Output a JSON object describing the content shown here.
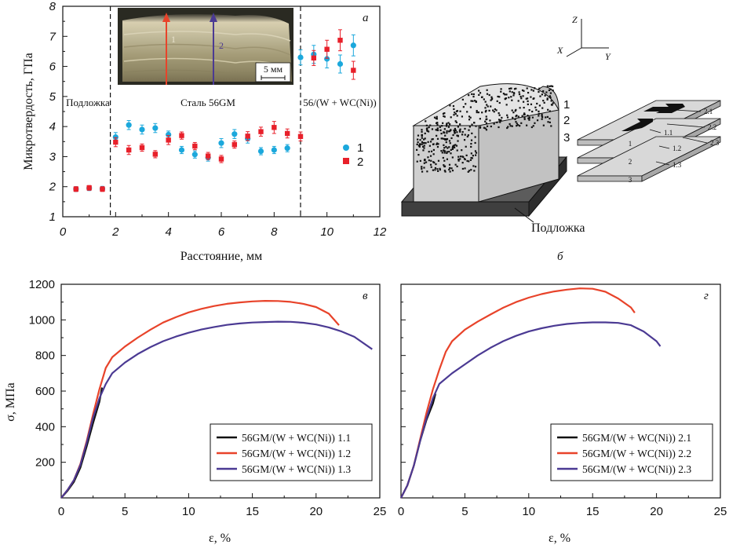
{
  "panels": {
    "a": {
      "letter": "а",
      "ylabel": "Микротвердость, ГПа",
      "xlabel": "Расстояние, мм",
      "regions": [
        "Подложка",
        "Сталь 56GM",
        "56/(W + WC(Ni))"
      ],
      "scale_bar": "5 мм",
      "arrow_labels": [
        "1",
        "2"
      ]
    },
    "b": {
      "letter": "б",
      "substrate_label": "Подложка",
      "layer_labels": [
        "1",
        "2",
        "3"
      ],
      "sample_labels": [
        "2.1",
        "2.2",
        "2.3",
        "1.1",
        "1.2",
        "1.3"
      ],
      "stack_numbers": [
        "1",
        "2",
        "3"
      ],
      "axes": [
        "Z",
        "X",
        "Y"
      ]
    },
    "v": {
      "letter": "в",
      "ylabel": "σ, МПа",
      "xlabel": "ε, %"
    },
    "g": {
      "letter": "г",
      "xlabel": "ε, %"
    }
  },
  "colors": {
    "cyan": "#1ba8dc",
    "red": "#e8202a",
    "black": "#111111",
    "orange": "#e8432a",
    "purple": "#4b3a93"
  },
  "chart_data": [
    {
      "type": "scatter",
      "panel": "а",
      "xlim": [
        0,
        12
      ],
      "ylim": [
        1,
        8
      ],
      "xticks": [
        0,
        2,
        4,
        6,
        8,
        10,
        12
      ],
      "yticks": [
        1,
        2,
        3,
        4,
        5,
        6,
        7,
        8
      ],
      "boundaries": [
        1.8,
        9.0
      ],
      "legend": [
        "1",
        "2"
      ],
      "series": [
        {
          "name": "1",
          "color": "#1ba8dc",
          "points": [
            {
              "x": 0.5,
              "y": 1.92,
              "err": 0.08
            },
            {
              "x": 1.0,
              "y": 1.95,
              "err": 0.08
            },
            {
              "x": 1.5,
              "y": 1.93,
              "err": 0.08
            },
            {
              "x": 2.0,
              "y": 3.65,
              "err": 0.15
            },
            {
              "x": 2.5,
              "y": 4.05,
              "err": 0.15
            },
            {
              "x": 3.0,
              "y": 3.9,
              "err": 0.15
            },
            {
              "x": 3.5,
              "y": 3.95,
              "err": 0.15
            },
            {
              "x": 4.0,
              "y": 3.73,
              "err": 0.12
            },
            {
              "x": 4.5,
              "y": 3.22,
              "err": 0.12
            },
            {
              "x": 5.0,
              "y": 3.07,
              "err": 0.12
            },
            {
              "x": 5.5,
              "y": 2.97,
              "err": 0.12
            },
            {
              "x": 6.0,
              "y": 3.45,
              "err": 0.15
            },
            {
              "x": 6.5,
              "y": 3.75,
              "err": 0.15
            },
            {
              "x": 7.0,
              "y": 3.6,
              "err": 0.15
            },
            {
              "x": 7.5,
              "y": 3.18,
              "err": 0.12
            },
            {
              "x": 8.0,
              "y": 3.22,
              "err": 0.12
            },
            {
              "x": 8.5,
              "y": 3.28,
              "err": 0.12
            },
            {
              "x": 9.0,
              "y": 6.3,
              "err": 0.25
            },
            {
              "x": 9.5,
              "y": 6.4,
              "err": 0.3
            },
            {
              "x": 10.0,
              "y": 6.25,
              "err": 0.3
            },
            {
              "x": 10.5,
              "y": 6.08,
              "err": 0.3
            },
            {
              "x": 11.0,
              "y": 6.7,
              "err": 0.35
            }
          ]
        },
        {
          "name": "2",
          "color": "#e8202a",
          "points": [
            {
              "x": 0.5,
              "y": 1.92,
              "err": 0.08
            },
            {
              "x": 1.0,
              "y": 1.96,
              "err": 0.08
            },
            {
              "x": 1.5,
              "y": 1.92,
              "err": 0.08
            },
            {
              "x": 2.0,
              "y": 3.48,
              "err": 0.15
            },
            {
              "x": 2.5,
              "y": 3.22,
              "err": 0.15
            },
            {
              "x": 3.0,
              "y": 3.3,
              "err": 0.12
            },
            {
              "x": 3.5,
              "y": 3.08,
              "err": 0.12
            },
            {
              "x": 4.0,
              "y": 3.55,
              "err": 0.15
            },
            {
              "x": 4.5,
              "y": 3.7,
              "err": 0.12
            },
            {
              "x": 5.0,
              "y": 3.35,
              "err": 0.12
            },
            {
              "x": 5.5,
              "y": 3.02,
              "err": 0.12
            },
            {
              "x": 6.0,
              "y": 2.92,
              "err": 0.12
            },
            {
              "x": 6.5,
              "y": 3.4,
              "err": 0.12
            },
            {
              "x": 7.0,
              "y": 3.68,
              "err": 0.15
            },
            {
              "x": 7.5,
              "y": 3.83,
              "err": 0.15
            },
            {
              "x": 8.0,
              "y": 3.97,
              "err": 0.2
            },
            {
              "x": 8.5,
              "y": 3.77,
              "err": 0.15
            },
            {
              "x": 9.0,
              "y": 3.67,
              "err": 0.15
            },
            {
              "x": 9.5,
              "y": 6.28,
              "err": 0.25
            },
            {
              "x": 10.0,
              "y": 6.57,
              "err": 0.3
            },
            {
              "x": 10.5,
              "y": 6.87,
              "err": 0.35
            },
            {
              "x": 11.0,
              "y": 5.87,
              "err": 0.3
            }
          ]
        }
      ]
    },
    {
      "type": "line",
      "panel": "в",
      "xlim": [
        0,
        25
      ],
      "ylim": [
        0,
        1200
      ],
      "xticks": [
        0,
        5,
        10,
        15,
        20,
        25
      ],
      "yticks": [
        200,
        400,
        600,
        800,
        1000,
        1200
      ],
      "legend_position": "bottom-right",
      "series": [
        {
          "name": "56GM/(W + WC(Ni)) 1.1",
          "color": "#111111",
          "points": [
            [
              0,
              0
            ],
            [
              0.5,
              40
            ],
            [
              1,
              90
            ],
            [
              1.5,
              170
            ],
            [
              2,
              290
            ],
            [
              2.5,
              420
            ],
            [
              3,
              540
            ],
            [
              3.2,
              620
            ]
          ]
        },
        {
          "name": "56GM/(W + WC(Ni)) 1.2",
          "color": "#e8432a",
          "points": [
            [
              0,
              0
            ],
            [
              0.5,
              45
            ],
            [
              1,
              100
            ],
            [
              1.5,
              190
            ],
            [
              2,
              320
            ],
            [
              2.5,
              470
            ],
            [
              3,
              610
            ],
            [
              3.5,
              730
            ],
            [
              4,
              790
            ],
            [
              5,
              850
            ],
            [
              6,
              900
            ],
            [
              7,
              945
            ],
            [
              8,
              985
            ],
            [
              9,
              1015
            ],
            [
              10,
              1042
            ],
            [
              11,
              1062
            ],
            [
              12,
              1078
            ],
            [
              13,
              1090
            ],
            [
              14,
              1098
            ],
            [
              15,
              1104
            ],
            [
              16,
              1107
            ],
            [
              17,
              1106
            ],
            [
              18,
              1101
            ],
            [
              19,
              1090
            ],
            [
              20,
              1072
            ],
            [
              21,
              1035
            ],
            [
              21.8,
              970
            ]
          ]
        },
        {
          "name": "56GM/(W + WC(Ni)) 1.3",
          "color": "#4b3a93",
          "points": [
            [
              0,
              0
            ],
            [
              0.5,
              45
            ],
            [
              1,
              100
            ],
            [
              1.5,
              185
            ],
            [
              2,
              310
            ],
            [
              2.5,
              450
            ],
            [
              3,
              560
            ],
            [
              3.5,
              640
            ],
            [
              4,
              700
            ],
            [
              5,
              760
            ],
            [
              6,
              808
            ],
            [
              7,
              847
            ],
            [
              8,
              880
            ],
            [
              9,
              906
            ],
            [
              10,
              928
            ],
            [
              11,
              946
            ],
            [
              12,
              960
            ],
            [
              13,
              972
            ],
            [
              14,
              980
            ],
            [
              15,
              985
            ],
            [
              16,
              988
            ],
            [
              17,
              990
            ],
            [
              18,
              989
            ],
            [
              19,
              984
            ],
            [
              20,
              974
            ],
            [
              21,
              958
            ],
            [
              22,
              935
            ],
            [
              23,
              905
            ],
            [
              24.4,
              835
            ]
          ]
        }
      ]
    },
    {
      "type": "line",
      "panel": "г",
      "xlim": [
        0,
        25
      ],
      "ylim": [
        0,
        1200
      ],
      "xticks": [
        0,
        5,
        10,
        15,
        20,
        25
      ],
      "yticks": [
        200,
        400,
        600,
        800,
        1000,
        1200
      ],
      "legend_position": "bottom-right",
      "series": [
        {
          "name": "56GM/(W + WC(Ni)) 2.1",
          "color": "#111111",
          "points": [
            [
              0,
              0
            ],
            [
              0.5,
              70
            ],
            [
              1,
              180
            ],
            [
              1.5,
              320
            ],
            [
              2,
              440
            ],
            [
              2.5,
              530
            ],
            [
              2.7,
              585
            ]
          ]
        },
        {
          "name": "56GM/(W + WC(Ni)) 2.2",
          "color": "#e8432a",
          "points": [
            [
              0,
              0
            ],
            [
              0.5,
              70
            ],
            [
              1,
              180
            ],
            [
              1.5,
              330
            ],
            [
              2,
              480
            ],
            [
              2.5,
              610
            ],
            [
              3,
              720
            ],
            [
              3.5,
              820
            ],
            [
              4,
              880
            ],
            [
              5,
              945
            ],
            [
              6,
              990
            ],
            [
              7,
              1030
            ],
            [
              8,
              1068
            ],
            [
              9,
              1100
            ],
            [
              10,
              1125
            ],
            [
              11,
              1145
            ],
            [
              12,
              1160
            ],
            [
              13,
              1170
            ],
            [
              14,
              1177
            ],
            [
              15,
              1175
            ],
            [
              16,
              1158
            ],
            [
              17,
              1120
            ],
            [
              18,
              1070
            ],
            [
              18.3,
              1040
            ]
          ]
        },
        {
          "name": "56GM/(W + WC(Ni)) 2.3",
          "color": "#4b3a93",
          "points": [
            [
              0,
              0
            ],
            [
              0.5,
              70
            ],
            [
              1,
              180
            ],
            [
              1.5,
              320
            ],
            [
              2,
              450
            ],
            [
              2.5,
              560
            ],
            [
              3,
              640
            ],
            [
              4,
              700
            ],
            [
              5,
              750
            ],
            [
              6,
              800
            ],
            [
              7,
              843
            ],
            [
              8,
              880
            ],
            [
              9,
              910
            ],
            [
              10,
              935
            ],
            [
              11,
              953
            ],
            [
              12,
              967
            ],
            [
              13,
              977
            ],
            [
              14,
              983
            ],
            [
              15,
              986
            ],
            [
              16,
              986
            ],
            [
              17,
              983
            ],
            [
              18,
              970
            ],
            [
              19,
              935
            ],
            [
              20,
              880
            ],
            [
              20.3,
              852
            ]
          ]
        }
      ]
    }
  ]
}
